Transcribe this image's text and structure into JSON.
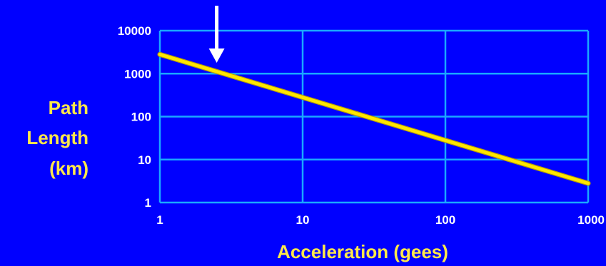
{
  "chart_data": {
    "type": "line",
    "title": "",
    "xlabel": "Acceleration (gees)",
    "ylabel_lines": [
      "Path",
      "Length",
      "(km)"
    ],
    "x_scale": "log",
    "y_scale": "log",
    "xlim": [
      1,
      1000
    ],
    "ylim": [
      1,
      10000
    ],
    "x_ticks": [
      "1",
      "10",
      "100",
      "1000"
    ],
    "y_ticks": [
      "1",
      "10",
      "100",
      "1000",
      "10000"
    ],
    "grid": true,
    "series": [
      {
        "x": [
          1,
          10,
          100,
          1000
        ],
        "y": [
          2800,
          280,
          28,
          2.8
        ]
      }
    ],
    "annotation": {
      "type": "arrow",
      "pointing_down_at_x": 2.5
    },
    "colors": {
      "background": "#0000ff",
      "grid": "#1aa8ff",
      "line": "#ffe600",
      "line_edge": "#b8a000",
      "tick_text": "#ffffff",
      "axis_label": "#ffe84a",
      "arrow": "#ffffff"
    }
  }
}
